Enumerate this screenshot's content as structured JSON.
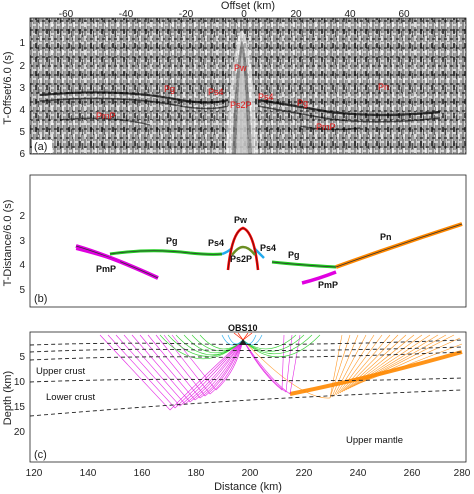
{
  "figure": {
    "panelA": {
      "tag": "(a)",
      "xlabel": "Offset (km)",
      "ylabel": "T-Offset/6.0 (s)",
      "xticks": [
        "-60",
        "-40",
        "-20",
        "0",
        "20",
        "40",
        "60"
      ],
      "yticks": [
        "1",
        "2",
        "3",
        "4",
        "5",
        "6"
      ],
      "phases": [
        "Pw",
        "Pg",
        "Ps4",
        "Ps4",
        "Pg",
        "Pn",
        "PmP",
        "Ps2P",
        "PmP"
      ]
    },
    "panelB": {
      "tag": "(b)",
      "ylabel": "T-Distance/6.0 (s)",
      "yticks": [
        "2",
        "3",
        "4",
        "5"
      ],
      "phases": [
        "Pw",
        "Pg",
        "Ps4",
        "Ps4",
        "Pg",
        "Pn",
        "PmP",
        "Ps2P",
        "PmP"
      ]
    },
    "panelC": {
      "tag": "(c)",
      "xlabel": "Distance (km)",
      "ylabel": "Depth (km)",
      "xticks": [
        "120",
        "140",
        "160",
        "180",
        "200",
        "220",
        "240",
        "260",
        "280"
      ],
      "yticks": [
        "5",
        "10",
        "15",
        "20"
      ],
      "station": "OBS10",
      "regions": [
        "Upper crust",
        "Lower crust",
        "Upper mantle"
      ]
    },
    "colors": {
      "pg": "#22cc22",
      "pmp": "#e000e0",
      "pn": "#ff8800",
      "ps": "#22aaee",
      "pw": "#ff0000"
    }
  }
}
